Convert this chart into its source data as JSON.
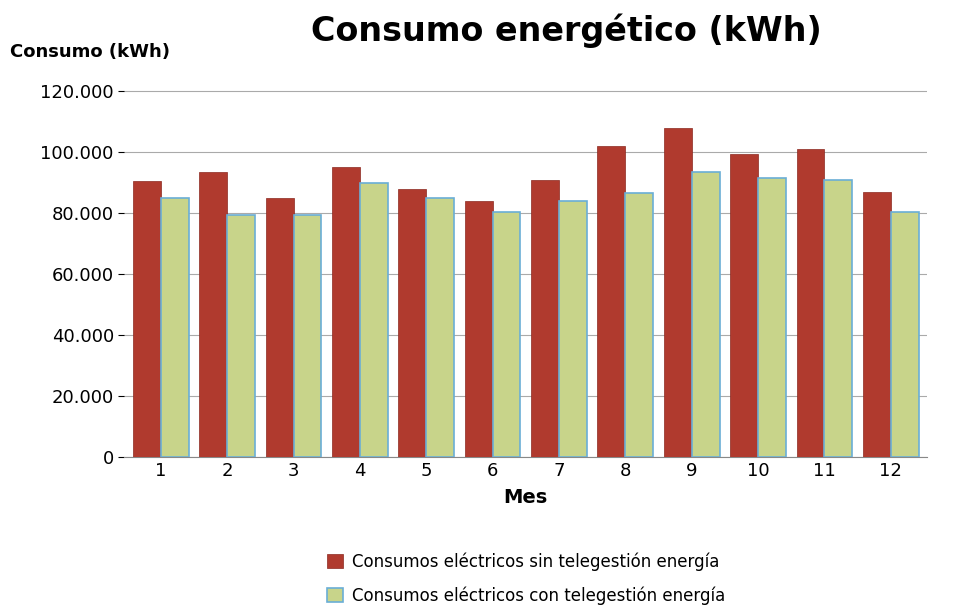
{
  "title": "Consumo energético (kWh)",
  "ylabel": "Consumo (kWh)",
  "xlabel": "Mes",
  "categories": [
    1,
    2,
    3,
    4,
    5,
    6,
    7,
    8,
    9,
    10,
    11,
    12
  ],
  "series_sin": [
    90500,
    93500,
    85000,
    95000,
    88000,
    84000,
    91000,
    102000,
    108000,
    99500,
    101000,
    87000
  ],
  "series_con": [
    85000,
    79500,
    79500,
    90000,
    85000,
    80500,
    84000,
    86500,
    93500,
    91500,
    91000,
    80500
  ],
  "color_sin": "#B03A2E",
  "color_con": "#C8D48A",
  "color_con_edge": "#6AAED6",
  "color_sin_edge": "#8B2820",
  "ylim": [
    0,
    130000
  ],
  "yticks": [
    0,
    20000,
    40000,
    60000,
    80000,
    100000,
    120000
  ],
  "legend_sin": "Consumos eléctricos sin telegestión energía",
  "legend_con": "Consumos eléctricos con telegestión energía",
  "title_fontsize": 24,
  "label_fontsize": 13,
  "tick_fontsize": 13,
  "legend_fontsize": 12,
  "bar_width": 0.42,
  "background_color": "#FFFFFF",
  "grid_color": "#AAAAAA"
}
